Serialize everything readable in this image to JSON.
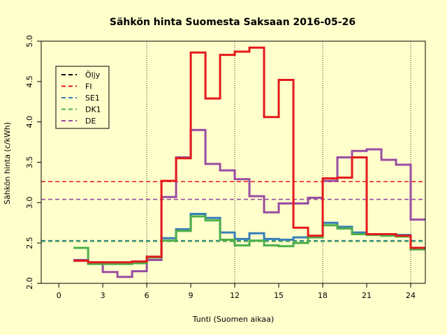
{
  "chart_data": {
    "type": "line",
    "title": "Sähkön hinta Suomesta Saksaan 2016-05-26",
    "xlabel": "Tunti (Suomen aikaa)",
    "ylabel": "Sähkön hinta (c/kWh)",
    "xlim": [
      -1.2,
      25
    ],
    "ylim": [
      2.0,
      5.0
    ],
    "x_ticks": [
      0,
      3,
      6,
      9,
      12,
      15,
      18,
      21,
      24
    ],
    "y_ticks": [
      2.0,
      2.5,
      3.0,
      3.5,
      4.0,
      4.5,
      5.0
    ],
    "y_tick_labels": [
      "2.0",
      "2.5",
      "3.0",
      "3.5",
      "4.0",
      "4.5",
      "5.0"
    ],
    "vlines": [
      6,
      12,
      18,
      24
    ],
    "legend_position": "top-left",
    "legend": [
      {
        "label": "Öljy",
        "color": "#000000"
      },
      {
        "label": "FI",
        "color": "#E41A1C"
      },
      {
        "label": "SE1",
        "color": "#377EB8"
      },
      {
        "label": "DK1",
        "color": "#4DAF4A"
      },
      {
        "label": "DE",
        "color": "#984EA3"
      }
    ],
    "hlines": [
      {
        "series": "Öljy",
        "value": 2.52,
        "color": "#000000"
      },
      {
        "series": "FI",
        "value": 3.26,
        "color": "#E41A1C"
      },
      {
        "series": "SE1",
        "value": 2.53,
        "color": "#377EB8"
      },
      {
        "series": "DK1",
        "value": 2.52,
        "color": "#4DAF4A"
      },
      {
        "series": "DE",
        "value": 3.04,
        "color": "#984EA3"
      }
    ],
    "series": [
      {
        "name": "DE",
        "color": "#984EA3",
        "x": [
          1,
          2,
          3,
          4,
          5,
          6,
          7,
          8,
          9,
          10,
          11,
          12,
          13,
          14,
          15,
          16,
          17,
          18,
          19,
          20,
          21,
          22,
          23,
          24,
          25
        ],
        "values": [
          2.29,
          2.26,
          2.14,
          2.08,
          2.15,
          2.29,
          3.07,
          3.56,
          3.9,
          3.48,
          3.4,
          3.29,
          3.08,
          2.88,
          2.99,
          2.99,
          3.06,
          3.27,
          3.56,
          3.64,
          3.66,
          3.53,
          3.47,
          2.79,
          2.79
        ]
      },
      {
        "name": "SE1",
        "color": "#377EB8",
        "x": [
          1,
          2,
          3,
          4,
          5,
          6,
          7,
          8,
          9,
          10,
          11,
          12,
          13,
          14,
          15,
          16,
          17,
          18,
          19,
          20,
          21,
          22,
          23,
          24,
          25
        ],
        "values": [
          2.28,
          2.26,
          2.26,
          2.26,
          2.27,
          2.33,
          2.56,
          2.67,
          2.86,
          2.81,
          2.63,
          2.55,
          2.62,
          2.55,
          2.54,
          2.57,
          2.58,
          2.75,
          2.7,
          2.63,
          2.61,
          2.61,
          2.6,
          2.44,
          2.44
        ]
      },
      {
        "name": "DK1",
        "color": "#4DAF4A",
        "x": [
          1,
          2,
          3,
          4,
          5,
          6,
          7,
          8,
          9,
          10,
          11,
          12,
          13,
          14,
          15,
          16,
          17,
          18,
          19,
          20,
          21,
          22,
          23,
          24,
          25
        ],
        "values": [
          2.44,
          2.24,
          2.24,
          2.24,
          2.25,
          2.32,
          2.53,
          2.65,
          2.83,
          2.78,
          2.54,
          2.47,
          2.53,
          2.47,
          2.46,
          2.5,
          2.57,
          2.72,
          2.68,
          2.61,
          2.6,
          2.59,
          2.58,
          2.42,
          2.42
        ]
      },
      {
        "name": "FI",
        "color": "#E41A1C",
        "x": [
          1,
          2,
          3,
          4,
          5,
          6,
          7,
          8,
          9,
          10,
          11,
          12,
          13,
          14,
          15,
          16,
          17,
          18,
          19,
          20,
          21,
          22,
          23,
          24,
          25
        ],
        "values": [
          2.28,
          2.26,
          2.26,
          2.26,
          2.27,
          2.33,
          3.27,
          3.55,
          4.86,
          4.29,
          4.83,
          4.87,
          4.92,
          4.06,
          4.52,
          2.69,
          2.59,
          3.3,
          3.31,
          3.56,
          2.61,
          2.61,
          2.59,
          2.44,
          2.44
        ]
      }
    ]
  }
}
